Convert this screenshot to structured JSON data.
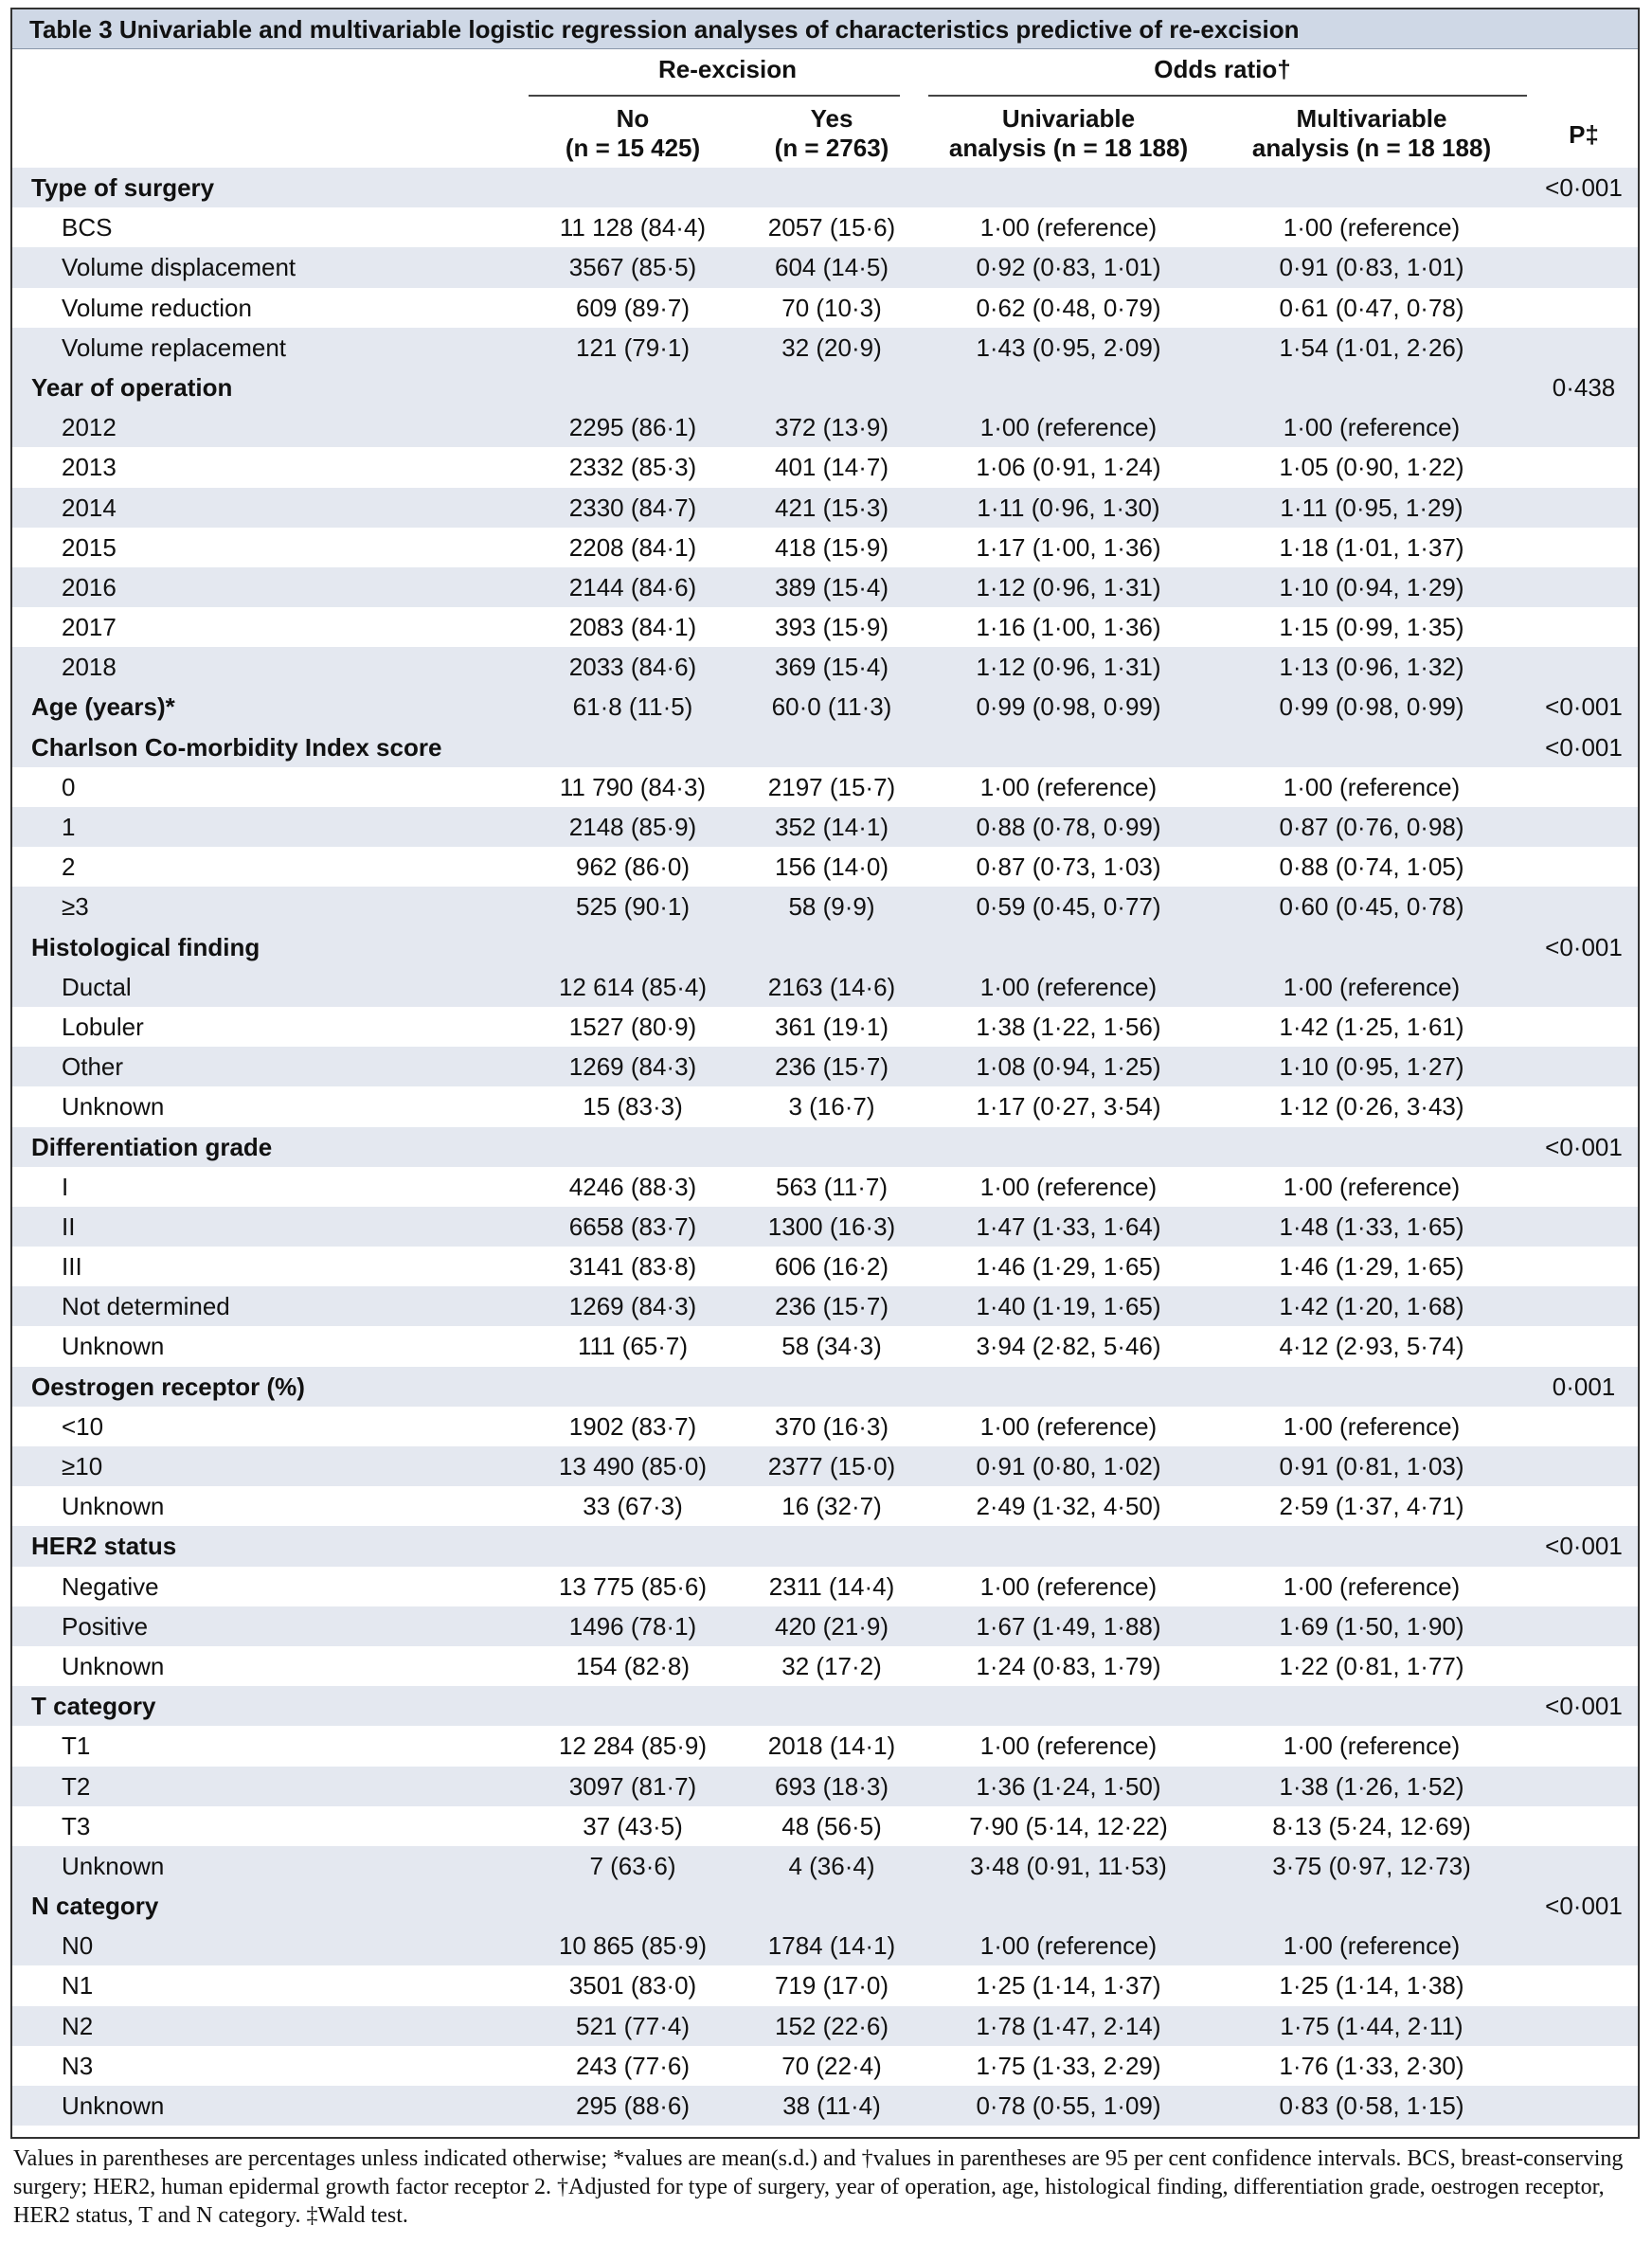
{
  "table": {
    "title": "Table 3 Univariable and multivariable logistic regression analyses of characteristics predictive of re-excision",
    "group_reexcision": "Re-excision",
    "group_odds": "Odds ratio†",
    "col_no": [
      "No",
      "(n = 15 425)"
    ],
    "col_yes": [
      "Yes",
      "(n = 2763)"
    ],
    "col_uni": [
      "Univariable",
      "analysis (n = 18 188)"
    ],
    "col_multi": [
      "Multivariable",
      "analysis (n = 18 188)"
    ],
    "col_p": "P‡",
    "rows": [
      {
        "type": "hdr",
        "label": "Type of surgery",
        "no": "",
        "yes": "",
        "uni": "",
        "multi": "",
        "p": "<0·001"
      },
      {
        "type": "item",
        "label": "BCS",
        "no": "11 128 (84·4)",
        "yes": "2057 (15·6)",
        "uni": "1·00 (reference)",
        "multi": "1·00 (reference)",
        "p": ""
      },
      {
        "type": "item",
        "label": "Volume displacement",
        "no": "3567 (85·5)",
        "yes": "604 (14·5)",
        "uni": "0·92 (0·83, 1·01)",
        "multi": "0·91 (0·83, 1·01)",
        "p": ""
      },
      {
        "type": "item",
        "label": "Volume reduction",
        "no": "609 (89·7)",
        "yes": "70 (10·3)",
        "uni": "0·62 (0·48, 0·79)",
        "multi": "0·61 (0·47, 0·78)",
        "p": ""
      },
      {
        "type": "item",
        "label": "Volume replacement",
        "no": "121 (79·1)",
        "yes": "32 (20·9)",
        "uni": "1·43 (0·95, 2·09)",
        "multi": "1·54 (1·01, 2·26)",
        "p": ""
      },
      {
        "type": "hdr",
        "label": "Year of operation",
        "no": "",
        "yes": "",
        "uni": "",
        "multi": "",
        "p": "0·438"
      },
      {
        "type": "item",
        "label": "2012",
        "no": "2295 (86·1)",
        "yes": "372 (13·9)",
        "uni": "1·00 (reference)",
        "multi": "1·00 (reference)",
        "p": ""
      },
      {
        "type": "item",
        "label": "2013",
        "no": "2332 (85·3)",
        "yes": "401 (14·7)",
        "uni": "1·06 (0·91, 1·24)",
        "multi": "1·05 (0·90, 1·22)",
        "p": ""
      },
      {
        "type": "item",
        "label": "2014",
        "no": "2330 (84·7)",
        "yes": "421 (15·3)",
        "uni": "1·11 (0·96, 1·30)",
        "multi": "1·11 (0·95, 1·29)",
        "p": ""
      },
      {
        "type": "item",
        "label": "2015",
        "no": "2208 (84·1)",
        "yes": "418 (15·9)",
        "uni": "1·17 (1·00, 1·36)",
        "multi": "1·18 (1·01, 1·37)",
        "p": ""
      },
      {
        "type": "item",
        "label": "2016",
        "no": "2144 (84·6)",
        "yes": "389 (15·4)",
        "uni": "1·12 (0·96, 1·31)",
        "multi": "1·10 (0·94, 1·29)",
        "p": ""
      },
      {
        "type": "item",
        "label": "2017",
        "no": "2083 (84·1)",
        "yes": "393 (15·9)",
        "uni": "1·16 (1·00, 1·36)",
        "multi": "1·15 (0·99, 1·35)",
        "p": ""
      },
      {
        "type": "item",
        "label": "2018",
        "no": "2033 (84·6)",
        "yes": "369 (15·4)",
        "uni": "1·12 (0·96, 1·31)",
        "multi": "1·13 (0·96, 1·32)",
        "p": ""
      },
      {
        "type": "hdr",
        "label": "Age (years)*",
        "no": "61·8 (11·5)",
        "yes": "60·0 (11·3)",
        "uni": "0·99 (0·98, 0·99)",
        "multi": "0·99 (0·98, 0·99)",
        "p": "<0·001"
      },
      {
        "type": "hdr",
        "label": "Charlson Co-morbidity Index score",
        "no": "",
        "yes": "",
        "uni": "",
        "multi": "",
        "p": "<0·001"
      },
      {
        "type": "item",
        "label": "0",
        "no": "11 790 (84·3)",
        "yes": "2197 (15·7)",
        "uni": "1·00 (reference)",
        "multi": "1·00 (reference)",
        "p": ""
      },
      {
        "type": "item",
        "label": "1",
        "no": "2148 (85·9)",
        "yes": "352 (14·1)",
        "uni": "0·88 (0·78, 0·99)",
        "multi": "0·87 (0·76, 0·98)",
        "p": ""
      },
      {
        "type": "item",
        "label": "2",
        "no": "962 (86·0)",
        "yes": "156 (14·0)",
        "uni": "0·87 (0·73, 1·03)",
        "multi": "0·88 (0·74, 1·05)",
        "p": ""
      },
      {
        "type": "item",
        "label": "≥3",
        "no": "525 (90·1)",
        "yes": "58 (9·9)",
        "uni": "0·59 (0·45, 0·77)",
        "multi": "0·60 (0·45, 0·78)",
        "p": ""
      },
      {
        "type": "hdr",
        "label": "Histological finding",
        "no": "",
        "yes": "",
        "uni": "",
        "multi": "",
        "p": "<0·001"
      },
      {
        "type": "item",
        "label": "Ductal",
        "no": "12 614 (85·4)",
        "yes": "2163 (14·6)",
        "uni": "1·00 (reference)",
        "multi": "1·00 (reference)",
        "p": ""
      },
      {
        "type": "item",
        "label": "Lobuler",
        "no": "1527 (80·9)",
        "yes": "361 (19·1)",
        "uni": "1·38 (1·22, 1·56)",
        "multi": "1·42 (1·25, 1·61)",
        "p": ""
      },
      {
        "type": "item",
        "label": "Other",
        "no": "1269 (84·3)",
        "yes": "236 (15·7)",
        "uni": "1·08 (0·94, 1·25)",
        "multi": "1·10 (0·95, 1·27)",
        "p": ""
      },
      {
        "type": "item",
        "label": "Unknown",
        "no": "15 (83·3)",
        "yes": "3 (16·7)",
        "uni": "1·17 (0·27, 3·54)",
        "multi": "1·12 (0·26, 3·43)",
        "p": ""
      },
      {
        "type": "hdr",
        "label": "Differentiation grade",
        "no": "",
        "yes": "",
        "uni": "",
        "multi": "",
        "p": "<0·001"
      },
      {
        "type": "item",
        "label": "I",
        "no": "4246 (88·3)",
        "yes": "563 (11·7)",
        "uni": "1·00 (reference)",
        "multi": "1·00 (reference)",
        "p": ""
      },
      {
        "type": "item",
        "label": "II",
        "no": "6658 (83·7)",
        "yes": "1300 (16·3)",
        "uni": "1·47 (1·33, 1·64)",
        "multi": "1·48 (1·33, 1·65)",
        "p": ""
      },
      {
        "type": "item",
        "label": "III",
        "no": "3141 (83·8)",
        "yes": "606 (16·2)",
        "uni": "1·46 (1·29, 1·65)",
        "multi": "1·46 (1·29, 1·65)",
        "p": ""
      },
      {
        "type": "item",
        "label": "Not determined",
        "no": "1269 (84·3)",
        "yes": "236 (15·7)",
        "uni": "1·40 (1·19, 1·65)",
        "multi": "1·42 (1·20, 1·68)",
        "p": ""
      },
      {
        "type": "item",
        "label": "Unknown",
        "no": "111 (65·7)",
        "yes": "58 (34·3)",
        "uni": "3·94 (2·82, 5·46)",
        "multi": "4·12 (2·93, 5·74)",
        "p": ""
      },
      {
        "type": "hdr",
        "label": "Oestrogen receptor (%)",
        "no": "",
        "yes": "",
        "uni": "",
        "multi": "",
        "p": "0·001"
      },
      {
        "type": "item",
        "label": "<10",
        "no": "1902 (83·7)",
        "yes": "370 (16·3)",
        "uni": "1·00 (reference)",
        "multi": "1·00 (reference)",
        "p": ""
      },
      {
        "type": "item",
        "label": "≥10",
        "no": "13 490 (85·0)",
        "yes": "2377 (15·0)",
        "uni": "0·91 (0·80, 1·02)",
        "multi": "0·91 (0·81, 1·03)",
        "p": ""
      },
      {
        "type": "item",
        "label": "Unknown",
        "no": "33 (67·3)",
        "yes": "16 (32·7)",
        "uni": "2·49 (1·32, 4·50)",
        "multi": "2·59 (1·37, 4·71)",
        "p": ""
      },
      {
        "type": "hdr",
        "label": "HER2 status",
        "no": "",
        "yes": "",
        "uni": "",
        "multi": "",
        "p": "<0·001"
      },
      {
        "type": "item",
        "label": "Negative",
        "no": "13 775 (85·6)",
        "yes": "2311 (14·4)",
        "uni": "1·00 (reference)",
        "multi": "1·00 (reference)",
        "p": ""
      },
      {
        "type": "item",
        "label": "Positive",
        "no": "1496 (78·1)",
        "yes": "420 (21·9)",
        "uni": "1·67 (1·49, 1·88)",
        "multi": "1·69 (1·50, 1·90)",
        "p": ""
      },
      {
        "type": "item",
        "label": "Unknown",
        "no": "154 (82·8)",
        "yes": "32 (17·2)",
        "uni": "1·24 (0·83, 1·79)",
        "multi": "1·22 (0·81, 1·77)",
        "p": ""
      },
      {
        "type": "hdr",
        "label": "T category",
        "no": "",
        "yes": "",
        "uni": "",
        "multi": "",
        "p": "<0·001"
      },
      {
        "type": "item",
        "label": "T1",
        "no": "12 284 (85·9)",
        "yes": "2018 (14·1)",
        "uni": "1·00 (reference)",
        "multi": "1·00 (reference)",
        "p": ""
      },
      {
        "type": "item",
        "label": "T2",
        "no": "3097 (81·7)",
        "yes": "693 (18·3)",
        "uni": "1·36 (1·24, 1·50)",
        "multi": "1·38 (1·26, 1·52)",
        "p": ""
      },
      {
        "type": "item",
        "label": "T3",
        "no": "37 (43·5)",
        "yes": "48 (56·5)",
        "uni": "7·90 (5·14, 12·22)",
        "multi": "8·13 (5·24, 12·69)",
        "p": ""
      },
      {
        "type": "item",
        "label": "Unknown",
        "no": "7 (63·6)",
        "yes": "4 (36·4)",
        "uni": "3·48 (0·91, 11·53)",
        "multi": "3·75 (0·97, 12·73)",
        "p": ""
      },
      {
        "type": "hdr",
        "label": "N category",
        "no": "",
        "yes": "",
        "uni": "",
        "multi": "",
        "p": "<0·001"
      },
      {
        "type": "item",
        "label": "N0",
        "no": "10 865 (85·9)",
        "yes": "1784 (14·1)",
        "uni": "1·00 (reference)",
        "multi": "1·00 (reference)",
        "p": ""
      },
      {
        "type": "item",
        "label": "N1",
        "no": "3501 (83·0)",
        "yes": "719 (17·0)",
        "uni": "1·25 (1·14, 1·37)",
        "multi": "1·25 (1·14, 1·38)",
        "p": ""
      },
      {
        "type": "item",
        "label": "N2",
        "no": "521 (77·4)",
        "yes": "152 (22·6)",
        "uni": "1·78 (1·47, 2·14)",
        "multi": "1·75 (1·44, 2·11)",
        "p": ""
      },
      {
        "type": "item",
        "label": "N3",
        "no": "243 (77·6)",
        "yes": "70 (22·4)",
        "uni": "1·75 (1·33, 2·29)",
        "multi": "1·76 (1·33, 2·30)",
        "p": ""
      },
      {
        "type": "item",
        "label": "Unknown",
        "no": "295 (88·6)",
        "yes": "38 (11·4)",
        "uni": "0·78 (0·55, 1·09)",
        "multi": "0·83 (0·58, 1·15)",
        "p": ""
      }
    ],
    "footnote": "Values in parentheses are percentages unless indicated otherwise; *values are mean(s.d.) and †values in parentheses are 95 per cent confidence intervals. BCS, breast-conserving surgery; HER2, human epidermal growth factor receptor 2. †Adjusted for type of surgery, year of operation, age, histological finding, differentiation grade, oestrogen receptor, HER2 status, T and N category. ‡Wald test."
  }
}
